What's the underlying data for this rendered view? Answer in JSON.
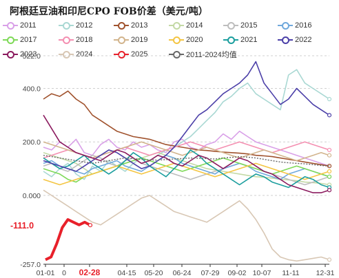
{
  "title": "阿根廷豆油和印尼CPO FOB价差（美元/吨）",
  "chart_data": {
    "type": "line",
    "title": "阿根廷豆油和印尼CPO FOB价差（美元/吨）",
    "xlabel": "",
    "ylabel": "",
    "ylim": [
      -257,
      522
    ],
    "y_ticks": [
      "522.0",
      "400.0",
      "200.0",
      "0.000",
      "-257.0"
    ],
    "x_ticks": [
      "01-01",
      "0",
      "02-28",
      "04-15",
      "05-20",
      "06-24",
      "07-29",
      "09-02",
      "10-07",
      "11-11",
      "12-31"
    ],
    "grid": true,
    "legend_position": "top",
    "highlight": {
      "series": "2025",
      "last_value_label": "-111.0",
      "last_date_label": "02-28"
    },
    "series": [
      {
        "name": "2011",
        "color": "#d9a0e8",
        "values": [
          180,
          170,
          200,
          180,
          210,
          160,
          150,
          190,
          210,
          180,
          170,
          200,
          180,
          190,
          170,
          160,
          200,
          210,
          180,
          170,
          190,
          200,
          230,
          210,
          240,
          220,
          200,
          190,
          180,
          170,
          160,
          150,
          140,
          130,
          120,
          110
        ]
      },
      {
        "name": "2012",
        "color": "#a9d8d3",
        "values": [
          90,
          70,
          100,
          120,
          80,
          60,
          110,
          90,
          130,
          110,
          90,
          120,
          140,
          130,
          150,
          170,
          180,
          200,
          220,
          250,
          280,
          310,
          350,
          370,
          400,
          420,
          380,
          360,
          340,
          320,
          450,
          470,
          420,
          400,
          380,
          360
        ]
      },
      {
        "name": "2013",
        "color": "#a0522d",
        "values": [
          360,
          380,
          370,
          390,
          360,
          340,
          300,
          280,
          260,
          240,
          230,
          220,
          215,
          210,
          200,
          190,
          185,
          180,
          175,
          170,
          168,
          165,
          162,
          160,
          158,
          155,
          150,
          148,
          145,
          140,
          135,
          130,
          125,
          120,
          115,
          110
        ]
      },
      {
        "name": "2014",
        "color": "#c3d9a5",
        "values": [
          160,
          150,
          140,
          130,
          120,
          100,
          80,
          90,
          100,
          110,
          120,
          130,
          140,
          150,
          160,
          150,
          140,
          130,
          120,
          110,
          100,
          95,
          90,
          85,
          80,
          75,
          70,
          68,
          65,
          60,
          58,
          55,
          50,
          48,
          45,
          40
        ]
      },
      {
        "name": "2015",
        "color": "#bdbdbd",
        "values": [
          110,
          120,
          100,
          90,
          110,
          130,
          150,
          140,
          120,
          110,
          130,
          140,
          120,
          110,
          100,
          90,
          80,
          70,
          60,
          70,
          80,
          90,
          100,
          110,
          120,
          110,
          100,
          90,
          80,
          70,
          60,
          50,
          40,
          50,
          60,
          70
        ]
      },
      {
        "name": "2016",
        "color": "#6fa8dc",
        "values": [
          120,
          130,
          110,
          100,
          90,
          80,
          100,
          110,
          120,
          130,
          110,
          100,
          90,
          110,
          130,
          150,
          140,
          120,
          110,
          100,
          90,
          80,
          100,
          110,
          120,
          110,
          90,
          80,
          70,
          60,
          80,
          90,
          100,
          90,
          80,
          70
        ]
      },
      {
        "name": "2017",
        "color": "#7ed957",
        "values": [
          100,
          90,
          80,
          60,
          50,
          70,
          80,
          90,
          100,
          110,
          120,
          130,
          140,
          130,
          120,
          110,
          100,
          90,
          100,
          110,
          120,
          130,
          140,
          130,
          120,
          110,
          100,
          90,
          80,
          90,
          100,
          110,
          100,
          90,
          80,
          70
        ]
      },
      {
        "name": "2018",
        "color": "#f48fb1",
        "values": [
          140,
          150,
          160,
          170,
          160,
          150,
          140,
          150,
          160,
          170,
          180,
          170,
          160,
          150,
          160,
          170,
          180,
          190,
          200,
          190,
          180,
          170,
          180,
          190,
          200,
          190,
          180,
          170,
          160,
          170,
          180,
          190,
          200,
          190,
          180,
          170
        ]
      },
      {
        "name": "2019",
        "color": "#d2b48c",
        "values": [
          200,
          190,
          180,
          170,
          160,
          150,
          140,
          150,
          160,
          170,
          180,
          190,
          200,
          190,
          180,
          170,
          160,
          150,
          160,
          170,
          180,
          170,
          160,
          150,
          140,
          150,
          160,
          170,
          160,
          150,
          140,
          130,
          140,
          150,
          160,
          150
        ]
      },
      {
        "name": "2020",
        "color": "#f4c542",
        "values": [
          60,
          50,
          40,
          50,
          60,
          70,
          80,
          90,
          100,
          110,
          100,
          90,
          80,
          90,
          100,
          110,
          120,
          110,
          100,
          90,
          80,
          70,
          80,
          90,
          100,
          110,
          120,
          110,
          100,
          90,
          80,
          70,
          60,
          70,
          80,
          90
        ]
      },
      {
        "name": "2021",
        "color": "#1b9e9e",
        "values": [
          140,
          120,
          100,
          110,
          130,
          150,
          120,
          100,
          80,
          100,
          130,
          160,
          140,
          110,
          90,
          70,
          100,
          130,
          170,
          150,
          120,
          100,
          80,
          60,
          40,
          60,
          80,
          70,
          50,
          40,
          30,
          50,
          70,
          60,
          40,
          30
        ]
      },
      {
        "name": "2022",
        "color": "#4b3fa8",
        "values": [
          130,
          120,
          110,
          100,
          90,
          110,
          130,
          150,
          170,
          160,
          140,
          120,
          100,
          110,
          130,
          150,
          180,
          220,
          260,
          300,
          320,
          350,
          380,
          400,
          420,
          450,
          500,
          420,
          380,
          340,
          360,
          400,
          370,
          340,
          320,
          300
        ]
      },
      {
        "name": "2023",
        "color": "#8b1a5e",
        "values": [
          300,
          250,
          200,
          180,
          160,
          150,
          140,
          130,
          150,
          170,
          160,
          140,
          120,
          130,
          150,
          140,
          120,
          110,
          130,
          150,
          140,
          120,
          100,
          120,
          140,
          130,
          110,
          90,
          80,
          60,
          40,
          30,
          20,
          10,
          10,
          20
        ]
      },
      {
        "name": "2024",
        "color": "#d8c7b4",
        "values": [
          20,
          0,
          -20,
          -40,
          -60,
          -80,
          -100,
          -110,
          -90,
          -70,
          -50,
          -30,
          -10,
          0,
          -20,
          -40,
          -60,
          -70,
          -80,
          -90,
          -100,
          -80,
          -60,
          -40,
          -20,
          -50,
          -90,
          -140,
          -200,
          -230,
          -240,
          -245,
          -240,
          -235,
          -230,
          -240
        ]
      },
      {
        "name": "2025",
        "color": "#e8202a",
        "values": [
          -240,
          -230,
          -180,
          -120,
          -90,
          -100,
          -110,
          -100,
          -111
        ]
      },
      {
        "name": "2011-2024均值",
        "color": "#666666",
        "values": [
          150,
          145,
          140,
          135,
          130,
          125,
          120,
          125,
          130,
          135,
          140,
          138,
          135,
          133,
          132,
          134,
          136,
          138,
          140,
          139,
          138,
          136,
          140,
          142,
          145,
          143,
          140,
          135,
          130,
          125,
          122,
          120,
          118,
          115,
          112,
          110
        ]
      }
    ]
  }
}
